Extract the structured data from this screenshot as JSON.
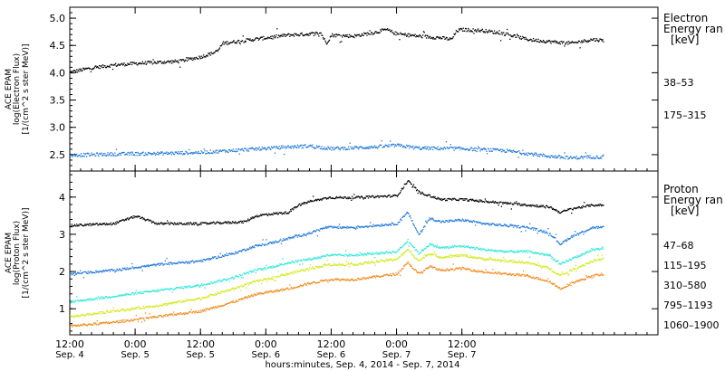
{
  "chart_data": [
    {
      "type": "scatter",
      "panel": "electron",
      "ylabel": [
        "ACE EPAM",
        "log(Electron Flux)",
        "[1/(cm^2 s ster MeV)]"
      ],
      "ylim": [
        2.2,
        5.2
      ],
      "yticks": [
        2.5,
        3.0,
        3.5,
        4.0,
        4.5,
        5.0
      ],
      "ytick_labels": [
        "2.5",
        "3.0",
        "3.5",
        "4.0",
        "4.5",
        "5.0"
      ],
      "legend_title": [
        "Electron",
        "Energy ran",
        "[keV]"
      ],
      "series": [
        {
          "name": "38–53",
          "color": "#000000",
          "x": [
            0,
            4,
            8,
            12,
            16,
            20,
            24,
            27,
            28,
            32,
            36,
            40,
            44,
            46,
            47,
            48,
            52,
            56,
            58,
            60,
            64,
            68,
            70,
            71,
            72,
            76,
            80,
            84,
            88,
            92,
            96,
            98
          ],
          "y": [
            4.02,
            4.1,
            4.15,
            4.18,
            4.2,
            4.22,
            4.3,
            4.4,
            4.55,
            4.6,
            4.65,
            4.7,
            4.72,
            4.74,
            4.55,
            4.7,
            4.68,
            4.75,
            4.8,
            4.72,
            4.68,
            4.65,
            4.62,
            4.78,
            4.8,
            4.78,
            4.72,
            4.62,
            4.58,
            4.55,
            4.62,
            4.6
          ]
        },
        {
          "name": "175–315",
          "color": "#1f78d8",
          "x": [
            0,
            8,
            16,
            24,
            32,
            40,
            44,
            48,
            56,
            60,
            64,
            72,
            80,
            88,
            92,
            96,
            98
          ],
          "y": [
            2.5,
            2.52,
            2.53,
            2.55,
            2.6,
            2.65,
            2.67,
            2.62,
            2.65,
            2.68,
            2.63,
            2.62,
            2.58,
            2.48,
            2.45,
            2.47,
            2.46
          ]
        }
      ]
    },
    {
      "type": "scatter",
      "panel": "proton",
      "ylabel": [
        "ACE EPAM",
        "log(Proton Flux)",
        "[1/(cm^2 s ster MeV)]"
      ],
      "ylim": [
        0.3,
        4.7
      ],
      "yticks": [
        1,
        2,
        3,
        4
      ],
      "ytick_labels": [
        "1",
        "2",
        "3",
        "4"
      ],
      "legend_title": [
        "Proton",
        "Energy ran",
        "[keV]"
      ],
      "series": [
        {
          "name": "47–68",
          "color": "#000000",
          "x": [
            0,
            8,
            12,
            16,
            24,
            32,
            34,
            36,
            40,
            42,
            44,
            46,
            47,
            52,
            60,
            62,
            64,
            66,
            68,
            72,
            76,
            80,
            84,
            88,
            90,
            92,
            96,
            98
          ],
          "y": [
            3.25,
            3.3,
            3.5,
            3.3,
            3.3,
            3.35,
            3.5,
            3.55,
            3.6,
            3.8,
            3.9,
            3.95,
            4.0,
            4.0,
            4.05,
            4.45,
            4.15,
            4.05,
            3.95,
            3.95,
            3.9,
            3.85,
            3.8,
            3.75,
            3.6,
            3.7,
            3.8,
            3.8
          ]
        },
        {
          "name": "115–195",
          "color": "#1f78d8",
          "x": [
            0,
            8,
            16,
            24,
            30,
            34,
            36,
            40,
            44,
            46,
            47,
            52,
            60,
            62,
            64,
            66,
            68,
            72,
            76,
            80,
            84,
            88,
            90,
            92,
            96,
            98
          ],
          "y": [
            1.95,
            2.05,
            2.2,
            2.3,
            2.5,
            2.7,
            2.75,
            2.9,
            3.05,
            3.15,
            3.2,
            3.2,
            3.3,
            3.6,
            3.0,
            3.45,
            3.35,
            3.4,
            3.3,
            3.25,
            3.2,
            3.05,
            2.75,
            2.95,
            3.2,
            3.2
          ]
        },
        {
          "name": "310–580",
          "color": "#2ee8d8",
          "x": [
            0,
            8,
            16,
            24,
            30,
            34,
            36,
            40,
            44,
            46,
            47,
            52,
            60,
            62,
            64,
            66,
            68,
            72,
            76,
            80,
            84,
            88,
            90,
            92,
            96,
            98
          ],
          "y": [
            1.2,
            1.35,
            1.5,
            1.65,
            1.85,
            2.05,
            2.1,
            2.25,
            2.35,
            2.4,
            2.45,
            2.45,
            2.55,
            2.85,
            2.5,
            2.75,
            2.65,
            2.7,
            2.6,
            2.55,
            2.55,
            2.45,
            2.2,
            2.35,
            2.6,
            2.65
          ]
        },
        {
          "name": "795–1193",
          "color": "#d4e81a",
          "x": [
            0,
            8,
            16,
            24,
            30,
            34,
            36,
            40,
            44,
            46,
            47,
            52,
            60,
            62,
            64,
            66,
            68,
            72,
            76,
            80,
            84,
            88,
            90,
            92,
            96,
            98
          ],
          "y": [
            0.8,
            0.95,
            1.1,
            1.3,
            1.55,
            1.75,
            1.8,
            1.95,
            2.1,
            2.15,
            2.2,
            2.2,
            2.35,
            2.6,
            2.3,
            2.5,
            2.4,
            2.45,
            2.35,
            2.3,
            2.25,
            2.1,
            1.9,
            2.05,
            2.3,
            2.35
          ]
        },
        {
          "name": "1060–1900",
          "color": "#f08a1a",
          "x": [
            0,
            8,
            16,
            24,
            30,
            34,
            36,
            40,
            44,
            46,
            47,
            52,
            60,
            62,
            64,
            66,
            68,
            72,
            76,
            80,
            84,
            88,
            90,
            92,
            96,
            98
          ],
          "y": [
            0.55,
            0.65,
            0.8,
            0.95,
            1.2,
            1.4,
            1.45,
            1.55,
            1.7,
            1.75,
            1.8,
            1.8,
            1.95,
            2.25,
            1.95,
            2.15,
            2.05,
            2.1,
            2.0,
            1.95,
            1.9,
            1.75,
            1.55,
            1.7,
            1.9,
            1.95
          ]
        }
      ]
    }
  ],
  "x_axis": {
    "xlim": [
      0,
      108
    ],
    "ticks": [
      {
        "hours": 0,
        "time": "12:00",
        "date": "Sep. 4"
      },
      {
        "hours": 12,
        "time": "0:00",
        "date": "Sep. 5"
      },
      {
        "hours": 24,
        "time": "12:00",
        "date": "Sep. 5"
      },
      {
        "hours": 36,
        "time": "0:00",
        "date": "Sep. 6"
      },
      {
        "hours": 48,
        "time": "12:00",
        "date": "Sep. 6"
      },
      {
        "hours": 60,
        "time": "0:00",
        "date": "Sep. 7"
      },
      {
        "hours": 72,
        "time": "12:00",
        "date": "Sep. 7"
      }
    ],
    "label": "hours:minutes, Sep.  4, 2014 - Sep.  7, 2014"
  }
}
